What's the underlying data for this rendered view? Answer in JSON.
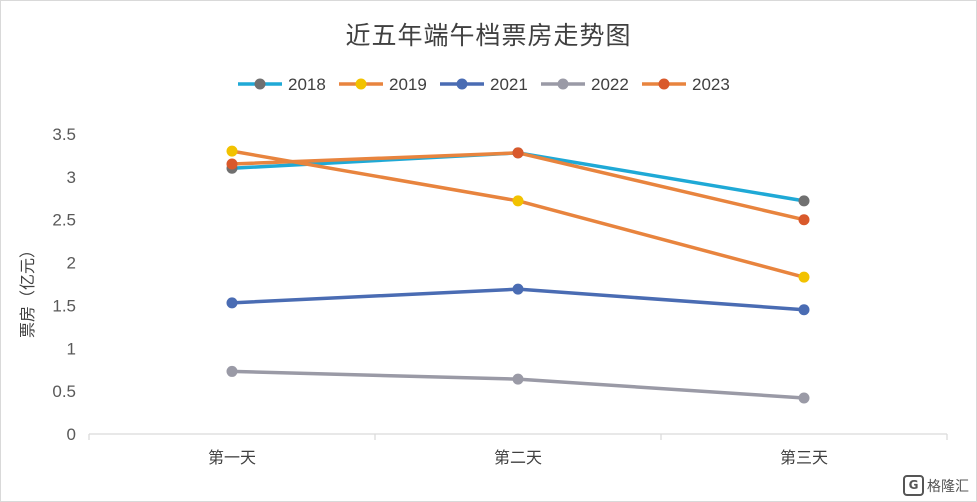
{
  "chart_data": {
    "type": "line",
    "title": "近五年端午档票房走势图",
    "ylabel": "票房（亿元）",
    "xlabel": "",
    "categories": [
      "第一天",
      "第二天",
      "第三天"
    ],
    "ylim": [
      0,
      3.5
    ],
    "yticks": [
      "0",
      "0.5",
      "1",
      "1.5",
      "2",
      "2.5",
      "3",
      "3.5"
    ],
    "legend_position": "top",
    "grid": false,
    "series": [
      {
        "name": "2018",
        "line_color": "#1fa9d6",
        "marker_color": "#707070",
        "values": [
          3.1,
          3.28,
          2.72
        ]
      },
      {
        "name": "2019",
        "line_color": "#e8843e",
        "marker_color": "#f2c200",
        "values": [
          3.3,
          2.72,
          1.83
        ]
      },
      {
        "name": "2021",
        "line_color": "#4a6cb3",
        "marker_color": "#4a6cb3",
        "values": [
          1.53,
          1.69,
          1.45
        ]
      },
      {
        "name": "2022",
        "line_color": "#9a9aa6",
        "marker_color": "#9a9aa6",
        "values": [
          0.73,
          0.64,
          0.42
        ]
      },
      {
        "name": "2023",
        "line_color": "#e8843e",
        "marker_color": "#d9592b",
        "values": [
          3.15,
          3.28,
          2.5
        ]
      }
    ]
  },
  "watermark": {
    "mark": "G",
    "text": "格隆汇"
  }
}
